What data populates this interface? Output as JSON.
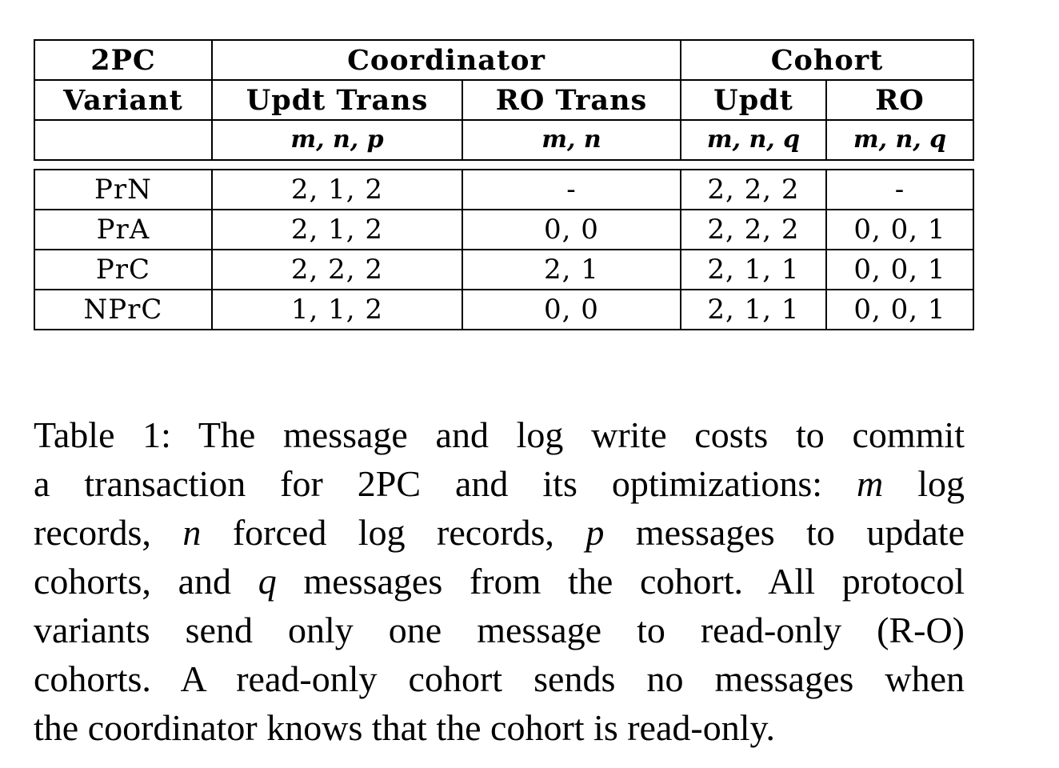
{
  "table": {
    "header_row1": {
      "variant": "2PC",
      "coordinator": "Coordinator",
      "cohort": "Cohort"
    },
    "header_row2": {
      "variant": "Variant",
      "updt_trans": "Updt Trans",
      "ro_trans": "RO Trans",
      "updt": "Updt",
      "ro": "RO"
    },
    "header_row3": {
      "variant": "",
      "updt_trans": "m, n, p",
      "ro_trans": "m, n",
      "updt": "m, n, q",
      "ro": "m, n, q"
    },
    "rows": [
      {
        "variant": "PrN",
        "updt_trans": "2, 1, 2",
        "ro_trans": "-",
        "updt": "2, 2, 2",
        "ro": "-"
      },
      {
        "variant": "PrA",
        "updt_trans": "2, 1, 2",
        "ro_trans": "0, 0",
        "updt": "2, 2, 2",
        "ro": "0, 0, 1"
      },
      {
        "variant": "PrC",
        "updt_trans": "2, 2, 2",
        "ro_trans": "2, 1",
        "updt": "2, 1, 1",
        "ro": "0, 0, 1"
      },
      {
        "variant": "NPrC",
        "updt_trans": "1, 1, 2",
        "ro_trans": "0, 0",
        "updt": "2, 1, 1",
        "ro": "0, 0, 1"
      }
    ]
  },
  "caption": {
    "lines": [
      [
        "Table 1: The message and log write costs to commit"
      ],
      [
        "a transaction for 2PC and its optimizations: ",
        "m",
        " log"
      ],
      [
        "records, ",
        "n",
        " forced log records, ",
        "p",
        " messages to update"
      ],
      [
        "cohorts, and ",
        "q",
        " messages from the cohort. All protocol"
      ],
      [
        "variants send only one message to read-only (R-O)"
      ],
      [
        "cohorts. A read-only cohort sends no messages when"
      ],
      [
        "the coordinator knows that the cohort is read-only."
      ]
    ]
  }
}
